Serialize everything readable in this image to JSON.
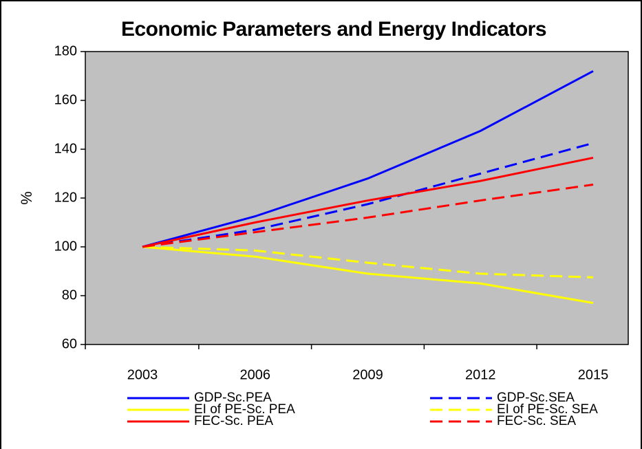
{
  "chart_data": {
    "type": "line",
    "title": "Economic Parameters and Energy Indicators",
    "y_label": "%",
    "categories": [
      "2003",
      "2006",
      "2009",
      "2012",
      "2015"
    ],
    "ylim": [
      60,
      180
    ],
    "yticks": [
      60,
      80,
      100,
      120,
      140,
      160,
      180
    ],
    "grid": false,
    "legend": "bottom",
    "series": [
      {
        "name": "GDP-Sc.PEA",
        "color": "#0000ff",
        "dashed": false,
        "values": [
          100,
          112.5,
          128,
          147.5,
          172
        ]
      },
      {
        "name": "GDP-Sc.SEA",
        "color": "#0000ff",
        "dashed": true,
        "values": [
          100,
          107,
          117.5,
          130,
          142.5
        ]
      },
      {
        "name": "EI of PE-Sc. PEA",
        "color": "#ffff00",
        "dashed": false,
        "values": [
          100,
          96,
          89,
          85,
          77
        ]
      },
      {
        "name": "EI of PE-Sc. SEA",
        "color": "#ffff00",
        "dashed": true,
        "values": [
          100,
          98.5,
          93.5,
          89,
          87.5
        ]
      },
      {
        "name": "FEC-Sc. PEA",
        "color": "#ff0000",
        "dashed": false,
        "values": [
          100,
          110,
          119,
          127,
          136.5
        ]
      },
      {
        "name": "FEC-Sc. SEA",
        "color": "#ff0000",
        "dashed": true,
        "values": [
          100,
          106,
          112,
          119,
          125.5
        ]
      }
    ]
  }
}
